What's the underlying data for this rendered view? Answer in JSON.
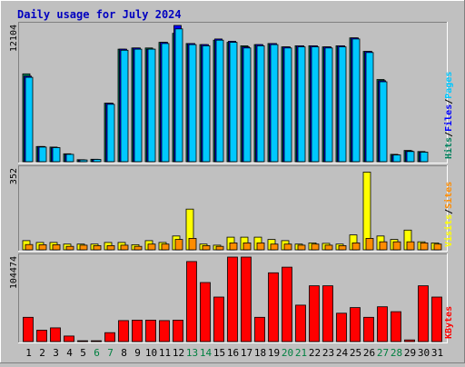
{
  "title": "Daily usage for July 2024",
  "colors": {
    "background": "#c0c0c0",
    "plot_bg": "#c0c0c0",
    "title": "#0000c0",
    "hits": "#00805c",
    "files": "#0000ff",
    "pages": "#00c8ff",
    "visits": "#ffff00",
    "sites": "#ff8c00",
    "kbytes": "#ff0000",
    "weekend": "#008040",
    "weekday": "#000000"
  },
  "chart_data": {
    "type": "bar",
    "title": "Daily usage for July 2024",
    "categories": [
      "1",
      "2",
      "3",
      "4",
      "5",
      "6",
      "7",
      "8",
      "9",
      "10",
      "11",
      "12",
      "13",
      "14",
      "15",
      "16",
      "17",
      "18",
      "19",
      "20",
      "21",
      "22",
      "23",
      "24",
      "25",
      "26",
      "27",
      "28",
      "29",
      "30",
      "31"
    ],
    "weekend_days": [
      "6",
      "7",
      "13",
      "14",
      "20",
      "21",
      "27",
      "28"
    ],
    "panels": [
      {
        "name": "requests",
        "ymax_label": "12104",
        "ylim": [
          0,
          12104
        ],
        "right_labels": [
          {
            "text": "Hits",
            "color": "#00805c"
          },
          {
            "text": "/",
            "color": "#000000"
          },
          {
            "text": "Files",
            "color": "#0000ff"
          },
          {
            "text": "/",
            "color": "#000000"
          },
          {
            "text": "Pages",
            "color": "#00c8ff"
          }
        ],
        "series": [
          {
            "name": "Hits",
            "color": "#00805c",
            "values": [
              7800,
              1350,
              1300,
              700,
              180,
              220,
              5200,
              10000,
              10100,
              10100,
              10600,
              11400,
              10500,
              10400,
              10800,
              10600,
              10300,
              10400,
              10500,
              10200,
              10300,
              10300,
              10200,
              10300,
              11000,
              9800,
              7300,
              650,
              1000,
              900,
              0
            ]
          },
          {
            "name": "Files",
            "color": "#0000ff",
            "values": [
              7600,
              1350,
              1250,
              650,
              150,
              200,
              5200,
              10000,
              10100,
              10000,
              10600,
              12100,
              10500,
              10400,
              10900,
              10700,
              10200,
              10400,
              10500,
              10200,
              10300,
              10300,
              10200,
              10300,
              11000,
              9800,
              7200,
              600,
              950,
              850,
              0
            ]
          },
          {
            "name": "Pages",
            "color": "#00c8ff",
            "values": [
              7500,
              1300,
              1250,
              650,
              150,
              200,
              5100,
              9900,
              10000,
              10000,
              10500,
              11800,
              10400,
              10300,
              10800,
              10600,
              10100,
              10300,
              10400,
              10100,
              10200,
              10200,
              10100,
              10200,
              10900,
              9700,
              7100,
              600,
              900,
              850,
              0
            ]
          }
        ]
      },
      {
        "name": "visitors",
        "ymax_label": "352",
        "ylim": [
          0,
          352
        ],
        "right_labels": [
          {
            "text": "Visits",
            "color": "#ffff00"
          },
          {
            "text": "/",
            "color": "#000000"
          },
          {
            "text": "Sites",
            "color": "#ff8c00"
          }
        ],
        "series": [
          {
            "name": "Visits",
            "color": "#ffff00",
            "values": [
              40,
              32,
              32,
              25,
              25,
              25,
              32,
              32,
              22,
              40,
              32,
              60,
              177,
              25,
              20,
              55,
              55,
              55,
              45,
              40,
              25,
              30,
              28,
              25,
              65,
              338,
              60,
              45,
              86,
              35,
              30
            ]
          },
          {
            "name": "Sites",
            "color": "#ff8c00",
            "values": [
              23,
              22,
              22,
              15,
              20,
              18,
              18,
              20,
              15,
              25,
              25,
              45,
              50,
              18,
              15,
              30,
              30,
              30,
              25,
              25,
              20,
              25,
              20,
              18,
              30,
              50,
              35,
              35,
              35,
              30,
              25
            ]
          }
        ]
      },
      {
        "name": "traffic",
        "ymax_label": "104474",
        "ylim": [
          0,
          104474
        ],
        "right_labels": [
          {
            "text": "KBytes",
            "color": "#ff0000"
          }
        ],
        "series": [
          {
            "name": "KBytes",
            "color": "#ff0000",
            "values": [
              30000,
              14000,
              17000,
              6800,
              1000,
              1000,
              11000,
              26000,
              26500,
              26500,
              26000,
              26500,
              99000,
              73000,
              55000,
              105000,
              105000,
              30000,
              85000,
              92000,
              45000,
              69000,
              69000,
              35000,
              42000,
              30000,
              43000,
              37000,
              2000,
              69000,
              55000
            ]
          }
        ]
      }
    ]
  }
}
